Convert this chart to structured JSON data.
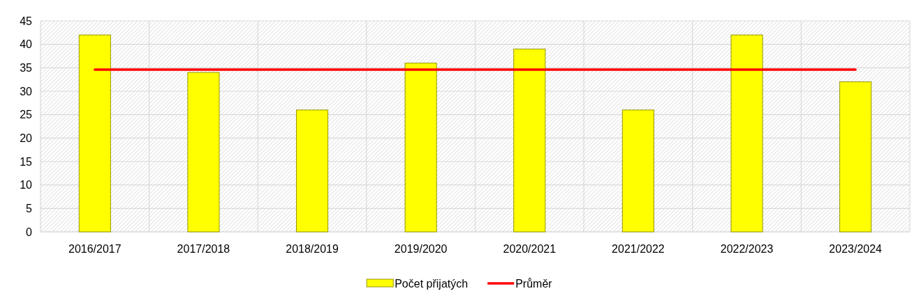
{
  "chart_data": {
    "type": "bar",
    "categories": [
      "2016/2017",
      "2017/2018",
      "2018/2019",
      "2019/2020",
      "2020/2021",
      "2021/2022",
      "2022/2023",
      "2023/2024"
    ],
    "series": [
      {
        "name": "Počet přijatých",
        "color": "#ffff00",
        "values": [
          42,
          34,
          26,
          36,
          39,
          26,
          42,
          32
        ]
      },
      {
        "name": "Průměr",
        "type": "line",
        "color": "#ff0000",
        "values": [
          34.6,
          34.6,
          34.6,
          34.6,
          34.6,
          34.6,
          34.6,
          34.6
        ]
      }
    ],
    "ylim": [
      0,
      45
    ],
    "yticks": [
      0,
      5,
      10,
      15,
      20,
      25,
      30,
      35,
      40,
      45
    ],
    "grid": true,
    "legend": "bottom"
  }
}
